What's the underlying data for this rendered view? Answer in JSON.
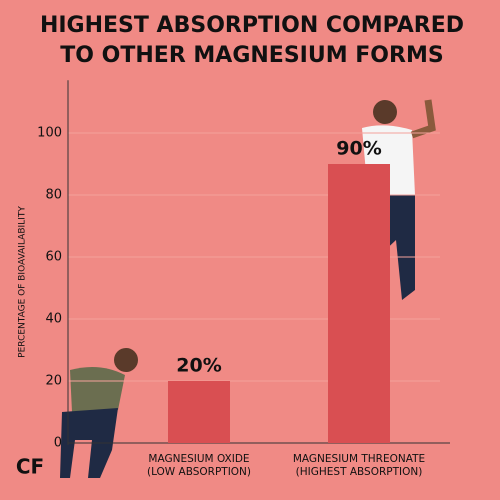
{
  "chart_data": {
    "type": "bar",
    "title": [
      "HIGHEST ABSORPTION COMPARED",
      "TO OTHER MAGNESIUM FORMS"
    ],
    "y_label": "PERCENTAGE OF BIOAVAILABILITY",
    "categories": [
      [
        "MAGNESIUM OXIDE",
        "(LOW ABSORPTION)"
      ],
      [
        "MAGNESIUM THREONATE",
        "(HIGHEST ABSORPTION)"
      ]
    ],
    "values": [
      20,
      90
    ],
    "value_labels": [
      "20%",
      "90%"
    ],
    "color": "#d94f52",
    "ylim": [
      0,
      117
    ],
    "yticks": [
      0,
      20,
      40,
      60,
      80,
      100
    ],
    "grid": true,
    "logo": "CF"
  }
}
